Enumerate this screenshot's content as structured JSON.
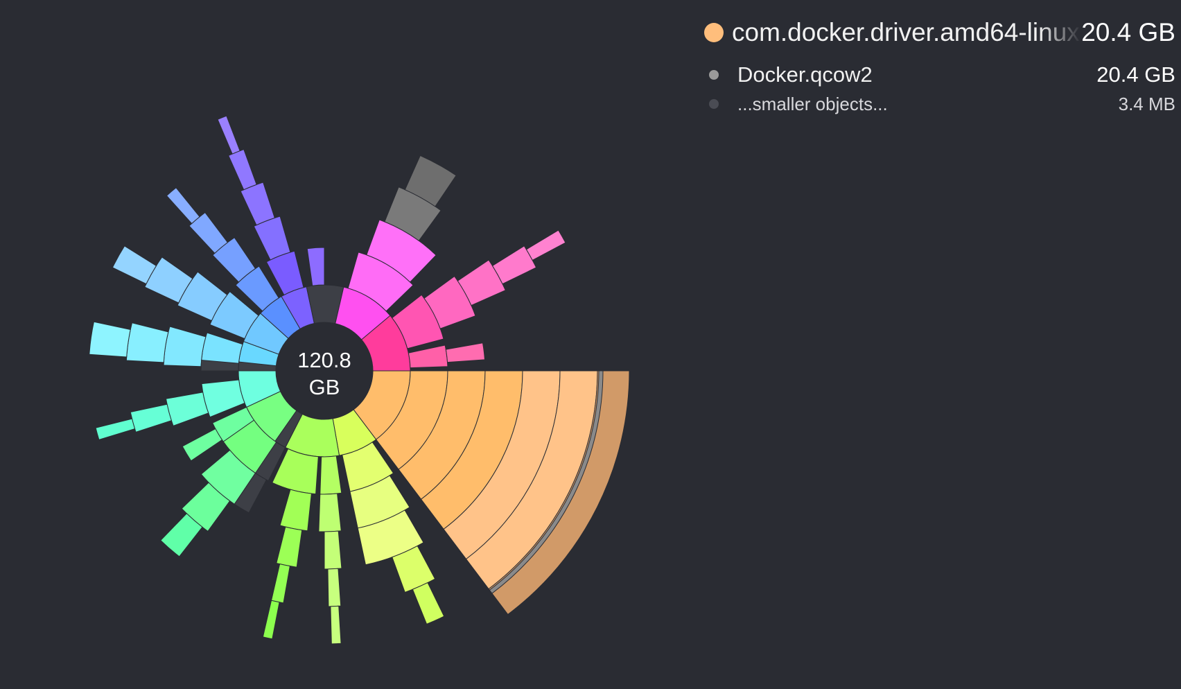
{
  "center": {
    "size_value": "120.8",
    "size_unit": "GB"
  },
  "selection": {
    "name": "com.docker.driver.amd64-linux",
    "size": "20.4 GB",
    "color": "#ffbe7c"
  },
  "children": [
    {
      "name": "Docker.qcow2",
      "size": "20.4 GB",
      "color": "#9a9a9a"
    },
    {
      "name": "...smaller objects...",
      "size": "3.4  MB",
      "color": "#4a4c54"
    }
  ],
  "colors": {
    "background": "#2a2c33",
    "hole": "#2a2c33",
    "grey_bucket": "#3d3f46"
  },
  "icons": {
    "selection_dot": "circle-dot-icon"
  }
}
